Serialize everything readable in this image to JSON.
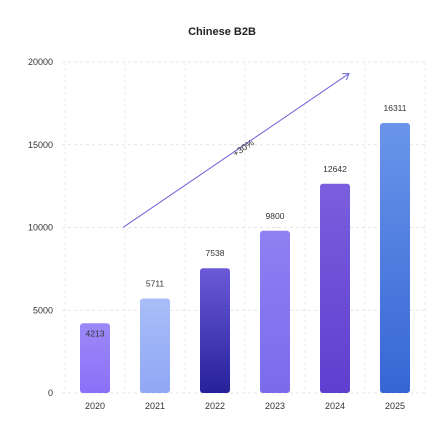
{
  "chart_data": {
    "type": "bar",
    "title": "Chinese B2B",
    "categories": [
      "2020",
      "2021",
      "2022",
      "2023",
      "2024",
      "2025"
    ],
    "series": [
      {
        "values": [
          4213,
          5711,
          7538,
          9800,
          12642,
          16311
        ]
      }
    ],
    "value_labels": [
      "4213",
      "5711",
      "7538",
      "9800",
      "12642",
      "16311"
    ],
    "ylim": [
      0,
      20000
    ],
    "yticks": [
      0,
      5000,
      10000,
      15000,
      20000
    ],
    "ytick_labels": [
      "0",
      "5000",
      "10000",
      "15000",
      "20000"
    ],
    "grid": true,
    "annotation": {
      "text": "+30%"
    },
    "bar_colors": [
      [
        "#8a70f8",
        "#9c89f8"
      ],
      [
        "#90a8f5",
        "#a9bdf8"
      ],
      [
        "#26219a",
        "#6b5ad8"
      ],
      [
        "#7b6bec",
        "#8f80f3"
      ],
      [
        "#5e3fcf",
        "#7a5fde"
      ],
      [
        "#3566d4",
        "#6a95ea"
      ]
    ],
    "arrow_color": "#6e63d8"
  }
}
